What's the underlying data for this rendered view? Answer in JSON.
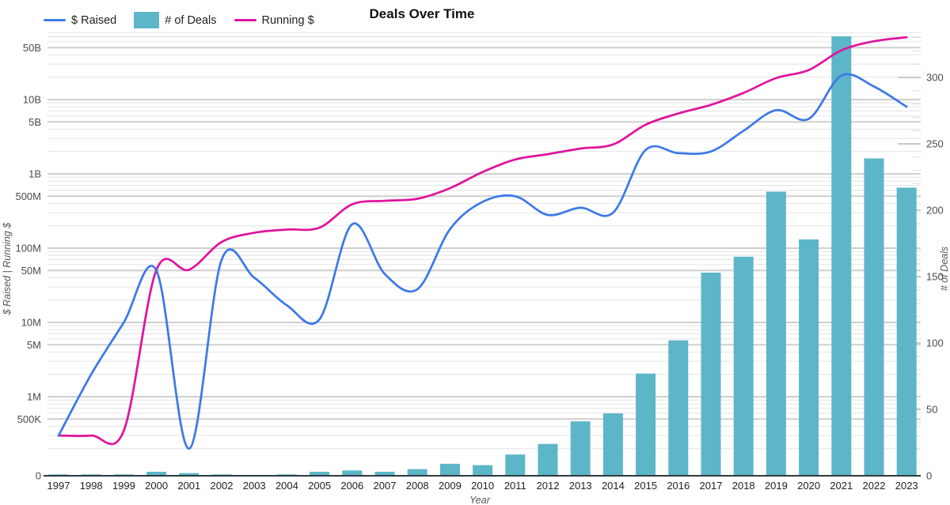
{
  "title": "Deals Over Time",
  "legend": [
    {
      "label": "$ Raised",
      "type": "line",
      "color": "#3d79e8"
    },
    {
      "label": "# of Deals",
      "type": "rect",
      "color": "#5db6c8"
    },
    {
      "label": "Running $",
      "type": "line",
      "color": "#e0149d"
    }
  ],
  "axes": {
    "x_label": "Year",
    "y_left_label": "$ Raised | Running $",
    "y_right_label": "# of Deals",
    "y_left_ticks": [
      "0",
      "500K",
      "1M",
      "5M",
      "10M",
      "50M",
      "100M",
      "500M",
      "1B",
      "5B",
      "10B",
      "50B"
    ],
    "y_right_ticks": [
      0,
      50,
      100,
      150,
      200,
      250,
      300
    ]
  },
  "chart_data": {
    "type": [
      "bar",
      "line",
      "line"
    ],
    "x": [
      1997,
      1998,
      1999,
      2000,
      2001,
      2002,
      2003,
      2004,
      2005,
      2006,
      2007,
      2008,
      2009,
      2010,
      2011,
      2012,
      2013,
      2014,
      2015,
      2016,
      2017,
      2018,
      2019,
      2020,
      2021,
      2022,
      2023
    ],
    "series": [
      {
        "name": "# of Deals",
        "style": "bar",
        "axis": "right",
        "values": [
          1,
          1,
          1,
          3,
          2,
          1,
          0,
          1,
          3,
          4,
          3,
          5,
          9,
          8,
          16,
          24,
          41,
          47,
          77,
          102,
          153,
          165,
          214,
          178,
          331,
          239,
          217
        ]
      },
      {
        "name": "Running $",
        "style": "line",
        "axis": "left-log",
        "values": [
          300000,
          300000,
          350000,
          51000000,
          51200000,
          121000000,
          161000000,
          178000000,
          189000000,
          389000000,
          434000000,
          462000000,
          642000000,
          1060000000,
          1560000000,
          1840000000,
          2190000000,
          2490000000,
          4600000000,
          6500000000,
          8500000000,
          12300000000,
          19500000000,
          25000000000,
          46000000000,
          61000000000,
          69000000000
        ]
      },
      {
        "name": "$ Raised",
        "style": "line",
        "axis": "left-log",
        "values": [
          300000,
          2000000,
          10000000,
          50000000,
          200000,
          70000000,
          40000000,
          17000000,
          11000000,
          210000000,
          45000000,
          28000000,
          180000000,
          420000000,
          500000000,
          280000000,
          350000000,
          300000000,
          2100000000,
          1900000000,
          2000000000,
          3800000000,
          7200000000,
          5500000000,
          21000000000,
          15000000000,
          8000000000
        ]
      }
    ],
    "title": "Deals Over Time",
    "xlabel": "Year",
    "ylabel_left": "$ Raised | Running $",
    "ylabel_right": "# of Deals",
    "y_left_scale": "log",
    "y_left_range": [
      "0",
      "80B"
    ],
    "y_right_scale": "linear",
    "y_right_range": [
      0,
      335
    ],
    "grid": "horizontal-log-minor-and-major",
    "legend_position": "top-left"
  }
}
